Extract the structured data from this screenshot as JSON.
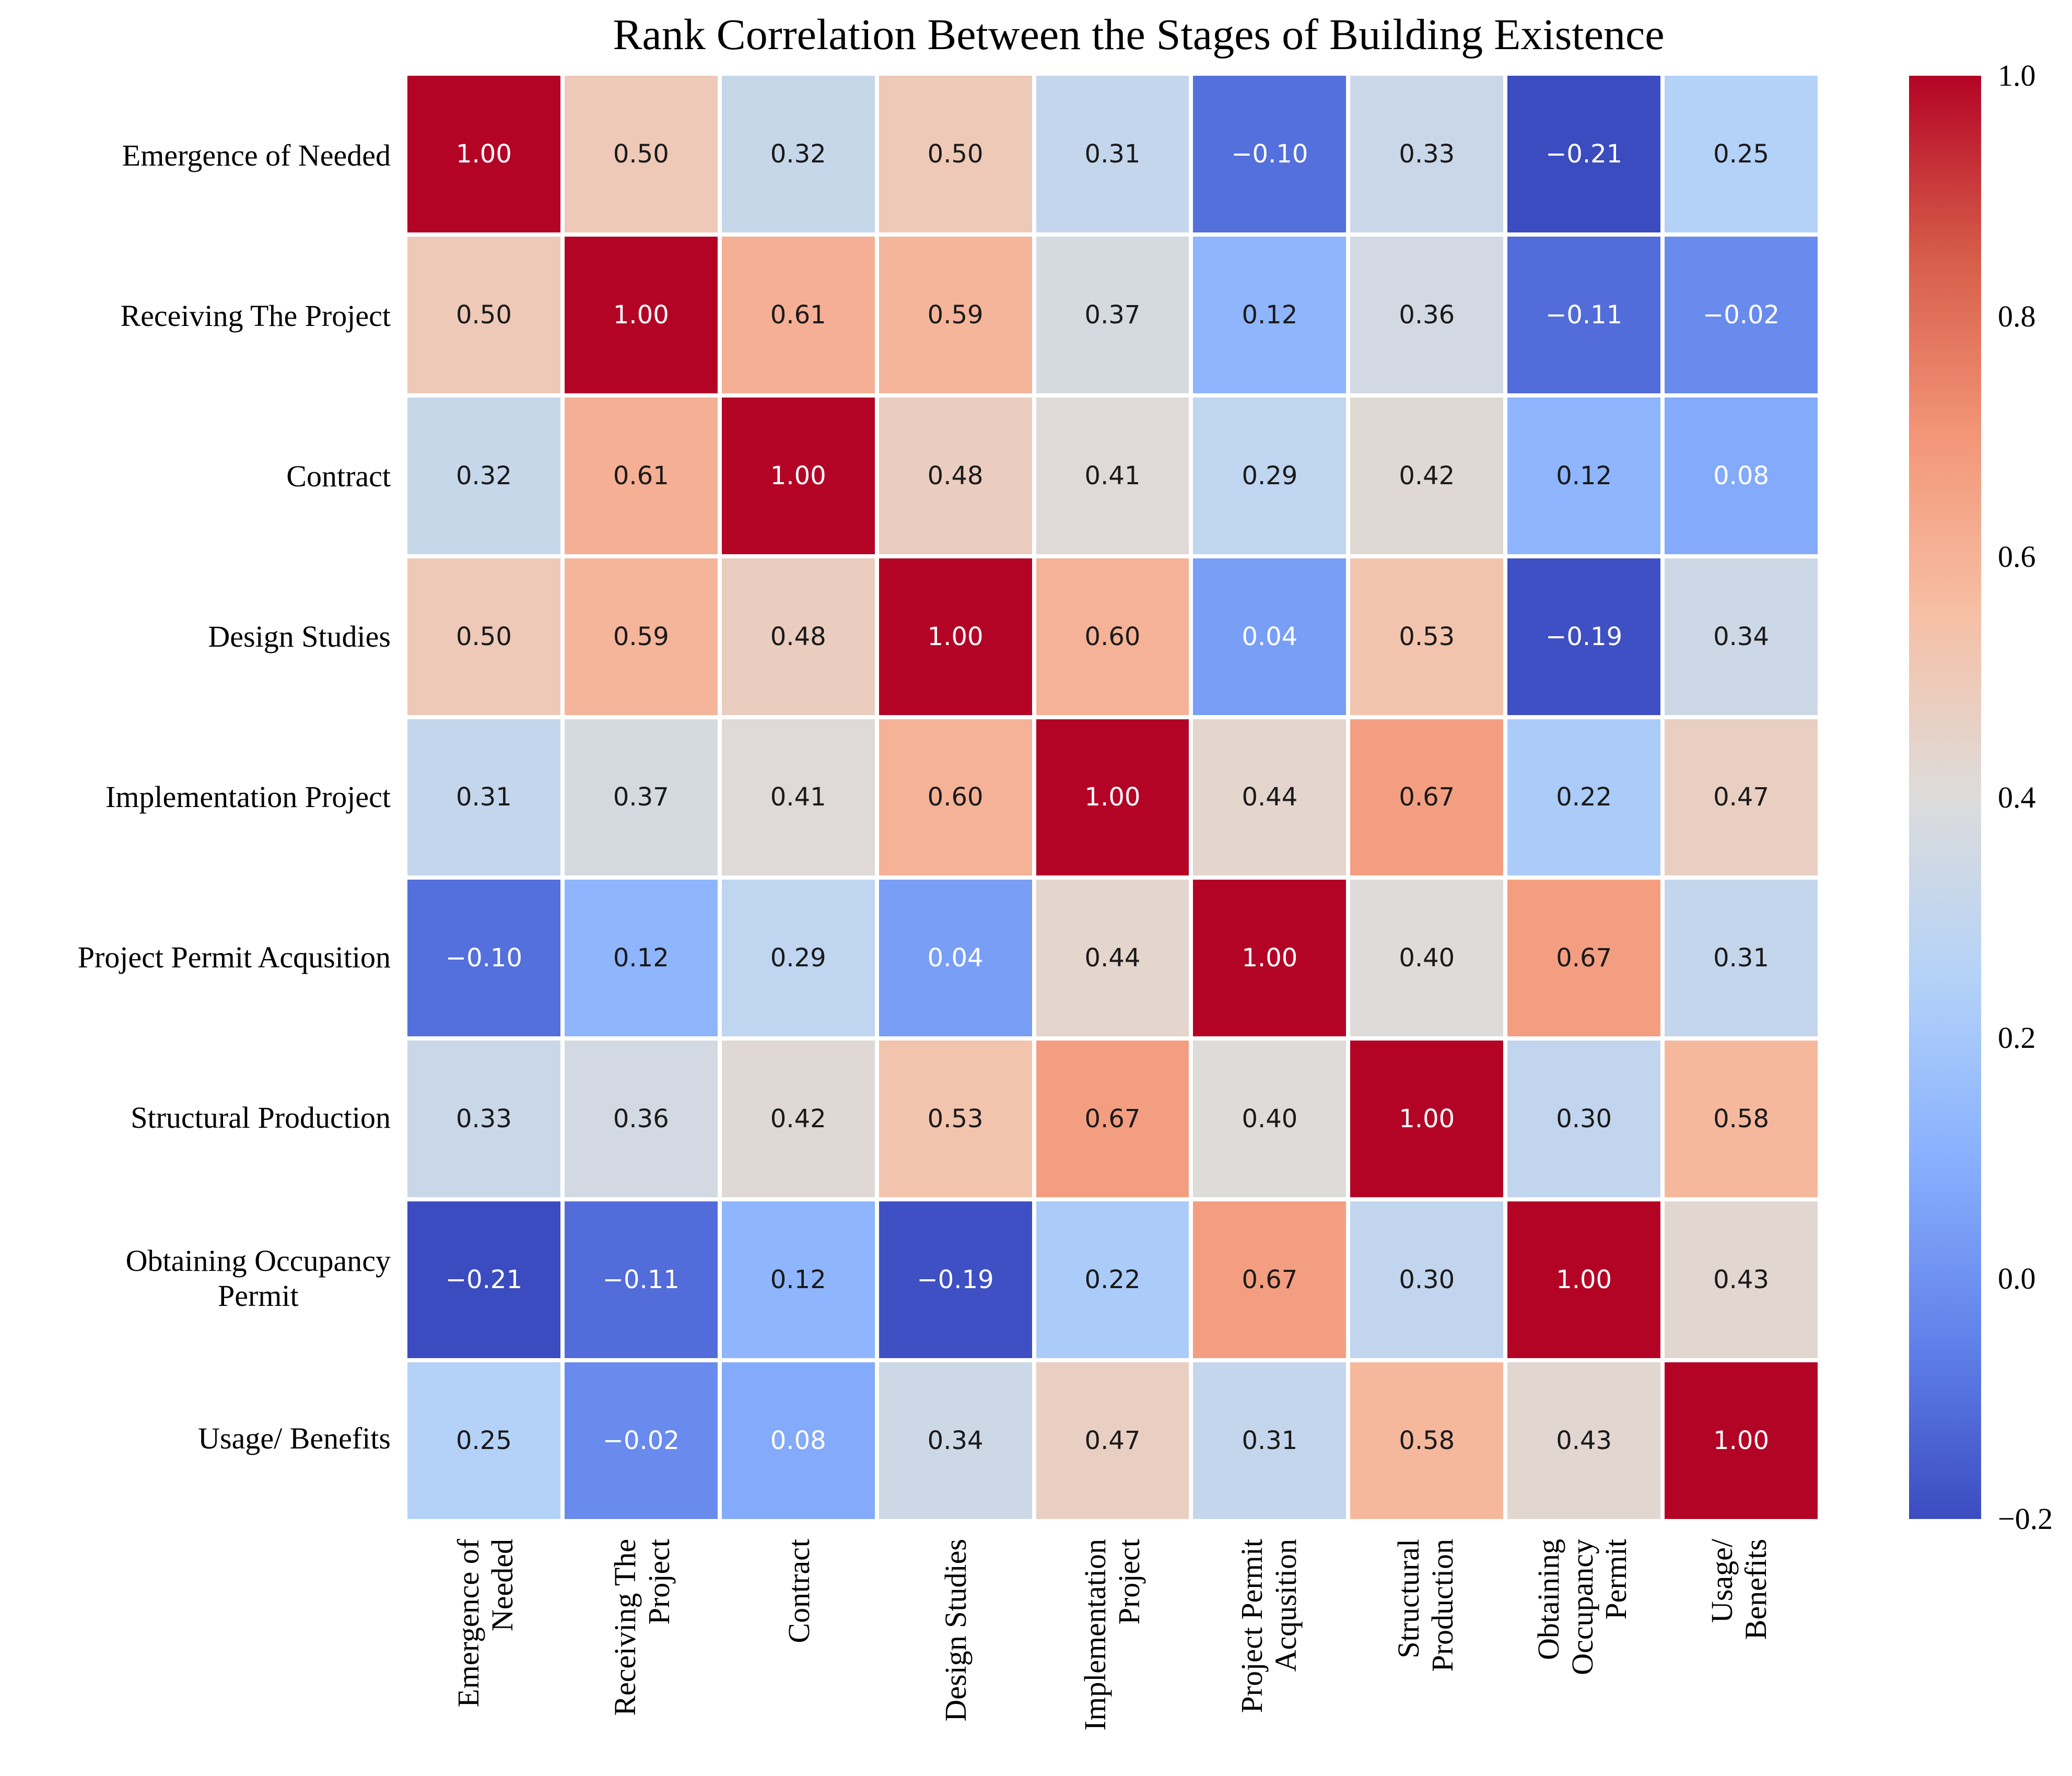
{
  "title": "Rank Correlation Between the Stages of Building Existence",
  "colors": {
    "background": "#ffffff",
    "colormap_min": "#3b4cc0",
    "colormap_mid": "#dddcdb",
    "colormap_max": "#b40426",
    "annotation_dark": "#1a1a1a",
    "annotation_light": "#ffffff",
    "gridline": "#ffffff"
  },
  "chart_data": {
    "type": "heatmap",
    "colormap": "coolwarm",
    "vmin": -0.2,
    "vmax": 1.0,
    "legend_position": "right-colorbar",
    "grid": false,
    "categories": [
      "Emergence of Needed",
      "Receiving The Project",
      "Contract",
      "Design Studies",
      "Implementation Project",
      "Project Permit Acqusition",
      "Structural Production",
      "Obtaining Occupancy Permit",
      "Usage/ Benefits"
    ],
    "row_label_lines": [
      [
        "Emergence of Needed"
      ],
      [
        "Receiving The Project"
      ],
      [
        "Contract"
      ],
      [
        "Design Studies"
      ],
      [
        "Implementation Project"
      ],
      [
        "Project Permit Acqusition"
      ],
      [
        "Structural Production"
      ],
      [
        "Obtaining Occupancy",
        "Permit"
      ],
      [
        "Usage/ Benefits"
      ]
    ],
    "col_label_lines": [
      [
        "Emergence of",
        "Needed"
      ],
      [
        "Receiving The",
        "Project"
      ],
      [
        "Contract"
      ],
      [
        "Design Studies"
      ],
      [
        "Implementation",
        "Project"
      ],
      [
        "Project Permit",
        "Acqusition"
      ],
      [
        "Structural",
        "Production"
      ],
      [
        "Obtaining",
        "Occupancy",
        "Permit"
      ],
      [
        "Usage/",
        "Benefits"
      ]
    ],
    "matrix": [
      [
        1.0,
        0.5,
        0.32,
        0.5,
        0.31,
        -0.1,
        0.33,
        -0.21,
        0.25
      ],
      [
        0.5,
        1.0,
        0.61,
        0.59,
        0.37,
        0.12,
        0.36,
        -0.11,
        -0.02
      ],
      [
        0.32,
        0.61,
        1.0,
        0.48,
        0.41,
        0.29,
        0.42,
        0.12,
        0.08
      ],
      [
        0.5,
        0.59,
        0.48,
        1.0,
        0.6,
        0.04,
        0.53,
        -0.19,
        0.34
      ],
      [
        0.31,
        0.37,
        0.41,
        0.6,
        1.0,
        0.44,
        0.67,
        0.22,
        0.47
      ],
      [
        -0.1,
        0.12,
        0.29,
        0.04,
        0.44,
        1.0,
        0.4,
        0.67,
        0.31
      ],
      [
        0.33,
        0.36,
        0.42,
        0.53,
        0.67,
        0.4,
        1.0,
        0.3,
        0.58
      ],
      [
        -0.21,
        -0.11,
        0.12,
        -0.19,
        0.22,
        0.67,
        0.3,
        1.0,
        0.43
      ],
      [
        0.25,
        -0.02,
        0.08,
        0.34,
        0.47,
        0.31,
        0.58,
        0.43,
        1.0
      ]
    ],
    "colorbar_ticks": [
      1.0,
      0.8,
      0.6,
      0.4,
      0.2,
      0.0,
      -0.2
    ]
  }
}
